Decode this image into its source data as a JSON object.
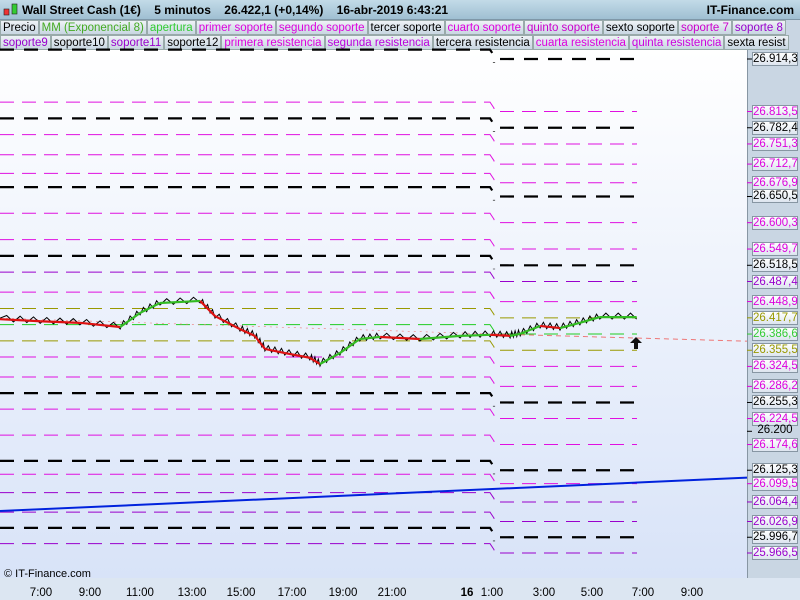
{
  "header": {
    "title": "Wall Street Cash (1€)    5 minutos    26.422,1 (+0,14%)    16-abr-2019 6:43:21",
    "brand": "IT-Finance.com"
  },
  "legend_row1": [
    {
      "label": "Precio",
      "color": "#000000"
    },
    {
      "label": "MM (Exponencial 8)",
      "color": "#44aa22"
    },
    {
      "label": "apertura",
      "color": "#33cc33"
    },
    {
      "label": "primer soporte",
      "color": "#dd00dd"
    },
    {
      "label": "segundo soporte",
      "color": "#dd00dd"
    },
    {
      "label": "tercer soporte",
      "color": "#000000"
    },
    {
      "label": "cuarto soporte",
      "color": "#dd00dd"
    },
    {
      "label": "quinto soporte",
      "color": "#cc00cc"
    },
    {
      "label": "sexto soporte",
      "color": "#000000"
    },
    {
      "label": "soporte 7",
      "color": "#cc00cc"
    },
    {
      "label": "soporte 8",
      "color": "#9900cc"
    }
  ],
  "legend_row2": [
    {
      "label": "soporte9",
      "color": "#9900cc"
    },
    {
      "label": "soporte10",
      "color": "#000000"
    },
    {
      "label": "soporte11",
      "color": "#9900cc"
    },
    {
      "label": "soporte12",
      "color": "#000000"
    },
    {
      "label": "primera resistencia",
      "color": "#dd00dd"
    },
    {
      "label": "segunda resistencia",
      "color": "#bb00dd"
    },
    {
      "label": "tercera resistencia",
      "color": "#000000"
    },
    {
      "label": "cuarta resistencia",
      "color": "#dd00dd"
    },
    {
      "label": "quinta resistencia",
      "color": "#cc00dd"
    },
    {
      "label": "sexta resist",
      "color": "#000000"
    }
  ],
  "price_labels": [
    {
      "text": "26.914,3",
      "value": 26914.3,
      "color": "#000000",
      "line": "black"
    },
    {
      "text": "26.813,5",
      "value": 26813.5,
      "color": "#dd00dd",
      "line": "magenta"
    },
    {
      "text": "26.782,4",
      "value": 26782.4,
      "color": "#000000",
      "line": "black"
    },
    {
      "text": "26.751,3",
      "value": 26751.3,
      "color": "#dd00dd",
      "line": "magenta"
    },
    {
      "text": "26.712,7",
      "value": 26712.7,
      "color": "#dd00dd",
      "line": "magenta"
    },
    {
      "text": "26.676,9",
      "value": 26676.9,
      "color": "#dd00dd",
      "line": "magenta"
    },
    {
      "text": "26.650,5",
      "value": 26650.5,
      "color": "#000000",
      "line": "black"
    },
    {
      "text": "26.600,3",
      "value": 26600.3,
      "color": "#dd00dd",
      "line": "magenta"
    },
    {
      "text": "26.549,7",
      "value": 26549.7,
      "color": "#dd00dd",
      "line": "magenta"
    },
    {
      "text": "26.518,5",
      "value": 26518.5,
      "color": "#000000",
      "line": "black"
    },
    {
      "text": "26.487,4",
      "value": 26487.4,
      "color": "#9900cc",
      "line": "purple"
    },
    {
      "text": "26.448,9",
      "value": 26448.9,
      "color": "#dd00dd",
      "line": "magenta"
    },
    {
      "text": "26.417,7",
      "value": 26417.7,
      "color": "#999900",
      "line": "olive"
    },
    {
      "text": "26.386,6",
      "value": 26386.6,
      "color": "#33cc33",
      "line": "green"
    },
    {
      "text": "26.355,5",
      "value": 26355.5,
      "color": "#999900",
      "line": "olive"
    },
    {
      "text": "26.324,5",
      "value": 26324.5,
      "color": "#dd00dd",
      "line": "magenta"
    },
    {
      "text": "26.286,2",
      "value": 26286.2,
      "color": "#dd00dd",
      "line": "magenta"
    },
    {
      "text": "26.255,3",
      "value": 26255.3,
      "color": "#000000",
      "line": "black"
    },
    {
      "text": "26.224,5",
      "value": 26224.5,
      "color": "#dd00dd",
      "line": "magenta"
    },
    {
      "text": "26.200",
      "value": 26200,
      "color": "#000000",
      "line": "none"
    },
    {
      "text": "26.174,6",
      "value": 26174.6,
      "color": "#dd00dd",
      "line": "magenta"
    },
    {
      "text": "26.125,3",
      "value": 26125.3,
      "color": "#000000",
      "line": "black"
    },
    {
      "text": "26.099,5",
      "value": 26099.5,
      "color": "#dd00dd",
      "line": "magenta"
    },
    {
      "text": "26.064,4",
      "value": 26064.4,
      "color": "#9900cc",
      "line": "purple"
    },
    {
      "text": "26.026,9",
      "value": 26026.9,
      "color": "#9900cc",
      "line": "purple"
    },
    {
      "text": "25.996,7",
      "value": 25996.7,
      "color": "#000000",
      "line": "black"
    },
    {
      "text": "25.966,5",
      "value": 25966.5,
      "color": "#9900cc",
      "line": "purple"
    }
  ],
  "time_labels": [
    {
      "text": "7:00",
      "bold": false
    },
    {
      "text": "9:00",
      "bold": false
    },
    {
      "text": "11:00",
      "bold": false
    },
    {
      "text": "13:00",
      "bold": false
    },
    {
      "text": "15:00",
      "bold": false
    },
    {
      "text": "17:00",
      "bold": false
    },
    {
      "text": "19:00",
      "bold": false
    },
    {
      "text": "21:00",
      "bold": false
    },
    {
      "text": "16",
      "bold": true
    },
    {
      "text": "1:00",
      "bold": false
    },
    {
      "text": "3:00",
      "bold": false
    },
    {
      "text": "5:00",
      "bold": false
    },
    {
      "text": "7:00",
      "bold": false
    },
    {
      "text": "9:00",
      "bold": false
    }
  ],
  "copyright": "© IT-Finance.com",
  "chart_data": {
    "type": "line",
    "price_series": [
      [
        "15 05:23",
        26417
      ],
      [
        "15 06:58",
        26413
      ],
      [
        "15 08:32",
        26410
      ],
      [
        "15 10:07",
        26402
      ],
      [
        "15 10:54",
        26429
      ],
      [
        "15 11:41",
        26448
      ],
      [
        "15 13:16",
        26452
      ],
      [
        "15 13:51",
        26423
      ],
      [
        "15 14:50",
        26398
      ],
      [
        "15 15:25",
        26385
      ],
      [
        "15 15:49",
        26360
      ],
      [
        "15 16:36",
        26352
      ],
      [
        "15 17:35",
        26343
      ],
      [
        "15 17:59",
        26331
      ],
      [
        "15 18:46",
        26352
      ],
      [
        "15 19:33",
        26379
      ],
      [
        "15 20:21",
        26383
      ],
      [
        "15 21:55",
        26379
      ],
      [
        "15 23:30",
        26385
      ],
      [
        "16 00:41",
        26387
      ],
      [
        "16 01:28",
        26385
      ],
      [
        "16 01:52",
        26389
      ],
      [
        "16 02:39",
        26404
      ],
      [
        "16 03:26",
        26400
      ],
      [
        "16 04:13",
        26410
      ],
      [
        "16 05:00",
        26421
      ],
      [
        "16 06:27",
        26421
      ]
    ],
    "previous_day_offset": 18,
    "trendline": {
      "from": [
        "15 05:23",
        26047
      ],
      "to": [
        "16 08:30",
        26106
      ]
    },
    "colors": {
      "trendline": "#0022dd",
      "ema_up": "#33bb22",
      "ema_down": "#dd1111",
      "last_price_line": "#ee7777"
    }
  }
}
